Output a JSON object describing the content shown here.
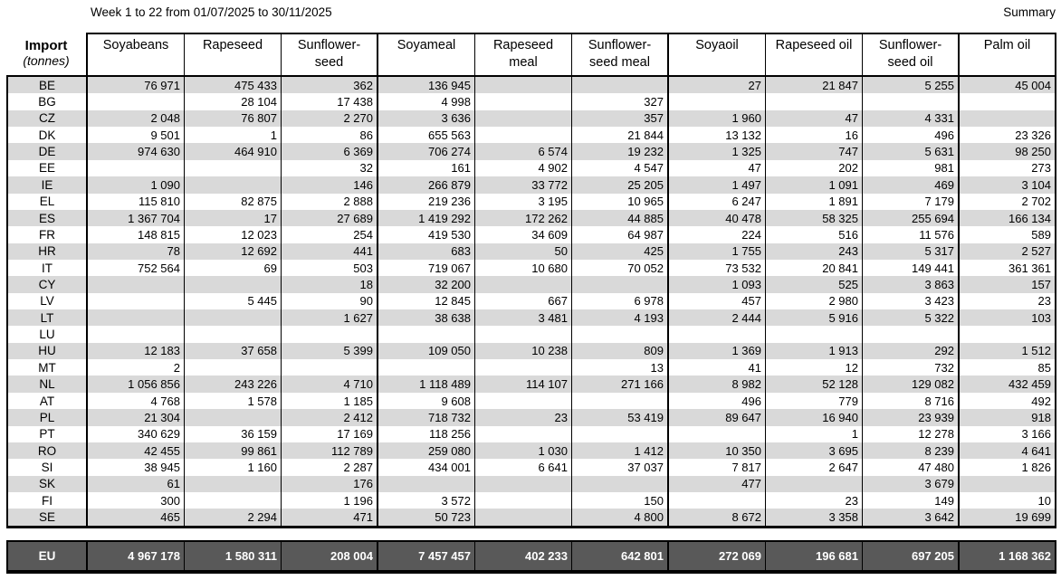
{
  "header": {
    "title": "Week 1 to 22 from 01/07/2025 to 30/11/2025",
    "summary_label": "Summary"
  },
  "table": {
    "corner_title": "Import",
    "corner_subtitle": "(tonnes)",
    "columns": [
      "Soyabeans",
      "Rapeseed",
      "Sunflower-\nseed",
      "Soyameal",
      "Rapeseed\nmeal",
      "Sunflower-\nseed meal",
      "Soyaoil",
      "Rapeseed oil",
      "Sunflower-\nseed oil",
      "Palm oil"
    ],
    "rows": [
      {
        "code": "BE",
        "values": [
          "76 971",
          "475 433",
          "362",
          "136 945",
          "",
          "",
          "27",
          "21 847",
          "5 255",
          "45 004"
        ]
      },
      {
        "code": "BG",
        "values": [
          "",
          "28 104",
          "17 438",
          "4 998",
          "",
          "327",
          "",
          "",
          "",
          ""
        ]
      },
      {
        "code": "CZ",
        "values": [
          "2 048",
          "76 807",
          "2 270",
          "3 636",
          "",
          "357",
          "1 960",
          "47",
          "4 331",
          ""
        ]
      },
      {
        "code": "DK",
        "values": [
          "9 501",
          "1",
          "86",
          "655 563",
          "",
          "21 844",
          "13 132",
          "16",
          "496",
          "23 326"
        ]
      },
      {
        "code": "DE",
        "values": [
          "974 630",
          "464 910",
          "6 369",
          "706 274",
          "6 574",
          "19 232",
          "1 325",
          "747",
          "5 631",
          "98 250"
        ]
      },
      {
        "code": "EE",
        "values": [
          "",
          "",
          "32",
          "161",
          "4 902",
          "4 547",
          "47",
          "202",
          "981",
          "273"
        ]
      },
      {
        "code": "IE",
        "values": [
          "1 090",
          "",
          "146",
          "266 879",
          "33 772",
          "25 205",
          "1 497",
          "1 091",
          "469",
          "3 104"
        ]
      },
      {
        "code": "EL",
        "values": [
          "115 810",
          "82 875",
          "2 888",
          "219 236",
          "3 195",
          "10 965",
          "6 247",
          "1 891",
          "7 179",
          "2 702"
        ]
      },
      {
        "code": "ES",
        "values": [
          "1 367 704",
          "17",
          "27 689",
          "1 419 292",
          "172 262",
          "44 885",
          "40 478",
          "58 325",
          "255 694",
          "166 134"
        ]
      },
      {
        "code": "FR",
        "values": [
          "148 815",
          "12 023",
          "254",
          "419 530",
          "34 609",
          "64 987",
          "224",
          "516",
          "11 576",
          "589"
        ]
      },
      {
        "code": "HR",
        "values": [
          "78",
          "12 692",
          "441",
          "683",
          "50",
          "425",
          "1 755",
          "243",
          "5 317",
          "2 527"
        ]
      },
      {
        "code": "IT",
        "values": [
          "752 564",
          "69",
          "503",
          "719 067",
          "10 680",
          "70 052",
          "73 532",
          "20 841",
          "149 441",
          "361 361"
        ]
      },
      {
        "code": "CY",
        "values": [
          "",
          "",
          "18",
          "32 200",
          "",
          "",
          "1 093",
          "525",
          "3 863",
          "157"
        ]
      },
      {
        "code": "LV",
        "values": [
          "",
          "5 445",
          "90",
          "12 845",
          "667",
          "6 978",
          "457",
          "2 980",
          "3 423",
          "23"
        ]
      },
      {
        "code": "LT",
        "values": [
          "",
          "",
          "1 627",
          "38 638",
          "3 481",
          "4 193",
          "2 444",
          "5 916",
          "5 322",
          "103"
        ]
      },
      {
        "code": "LU",
        "values": [
          "",
          "",
          "",
          "",
          "",
          "",
          "",
          "",
          "",
          ""
        ]
      },
      {
        "code": "HU",
        "values": [
          "12 183",
          "37 658",
          "5 399",
          "109 050",
          "10 238",
          "809",
          "1 369",
          "1 913",
          "292",
          "1 512"
        ]
      },
      {
        "code": "MT",
        "values": [
          "2",
          "",
          "",
          "",
          "",
          "13",
          "41",
          "12",
          "732",
          "85"
        ]
      },
      {
        "code": "NL",
        "values": [
          "1 056 856",
          "243 226",
          "4 710",
          "1 118 489",
          "114 107",
          "271 166",
          "8 982",
          "52 128",
          "129 082",
          "432 459"
        ]
      },
      {
        "code": "AT",
        "values": [
          "4 768",
          "1 578",
          "1 185",
          "9 608",
          "",
          "",
          "496",
          "779",
          "8 716",
          "492"
        ]
      },
      {
        "code": "PL",
        "values": [
          "21 304",
          "",
          "2 412",
          "718 732",
          "23",
          "53 419",
          "89 647",
          "16 940",
          "23 939",
          "918"
        ]
      },
      {
        "code": "PT",
        "values": [
          "340 629",
          "36 159",
          "17 169",
          "118 256",
          "",
          "",
          "",
          "1",
          "12 278",
          "3 166"
        ]
      },
      {
        "code": "RO",
        "values": [
          "42 455",
          "99 861",
          "112 789",
          "259 080",
          "1 030",
          "1 412",
          "10 350",
          "3 695",
          "8 239",
          "4 641"
        ]
      },
      {
        "code": "SI",
        "values": [
          "38 945",
          "1 160",
          "2 287",
          "434 001",
          "6 641",
          "37 037",
          "7 817",
          "2 647",
          "47 480",
          "1 826"
        ]
      },
      {
        "code": "SK",
        "values": [
          "61",
          "",
          "176",
          "",
          "",
          "",
          "477",
          "",
          "3 679",
          ""
        ]
      },
      {
        "code": "FI",
        "values": [
          "300",
          "",
          "1 196",
          "3 572",
          "",
          "150",
          "",
          "23",
          "149",
          "10"
        ]
      },
      {
        "code": "SE",
        "values": [
          "465",
          "2 294",
          "471",
          "50 723",
          "",
          "4 800",
          "8 672",
          "3 358",
          "3 642",
          "19 699"
        ]
      }
    ],
    "total_row": {
      "code": "EU",
      "values": [
        "4 967 178",
        "1 580 311",
        "208 004",
        "7 457 457",
        "402 233",
        "642 801",
        "272 069",
        "196 681",
        "697 205",
        "1 168 362"
      ]
    }
  },
  "colors": {
    "stripe": "#D9D9D9",
    "total_background": "#595959",
    "total_text": "#FFFFFF",
    "border": "#000000"
  }
}
